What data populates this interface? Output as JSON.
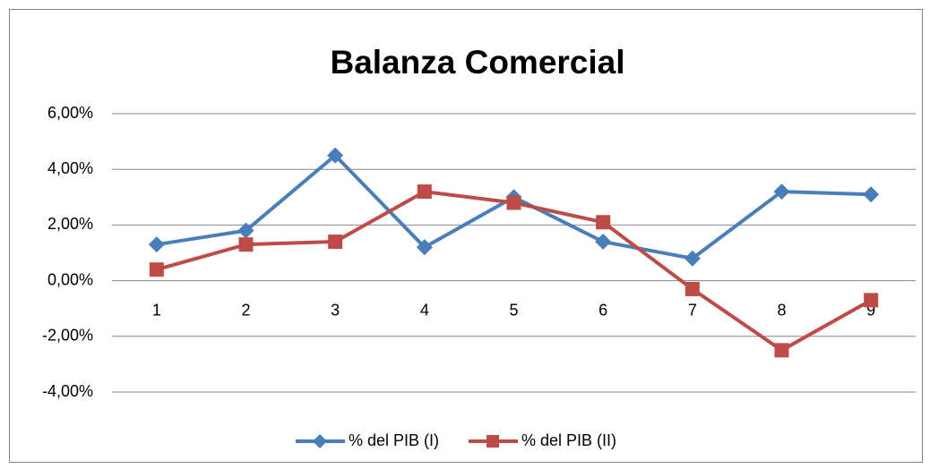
{
  "chart_data": {
    "type": "line",
    "title": "Balanza Comercial",
    "categories": [
      "1",
      "2",
      "3",
      "4",
      "5",
      "6",
      "7",
      "8",
      "9"
    ],
    "series": [
      {
        "name": "% del PIB (I)",
        "color": "#4a7ebb",
        "marker": "diamond",
        "values": [
          1.3,
          1.8,
          4.5,
          1.2,
          3.0,
          1.4,
          0.8,
          3.2,
          3.1
        ]
      },
      {
        "name": "% del PIB (II)",
        "color": "#be4b48",
        "marker": "square",
        "values": [
          0.4,
          1.3,
          1.4,
          3.2,
          2.8,
          2.1,
          -0.3,
          -2.5,
          -0.7
        ]
      }
    ],
    "ylim": [
      -4,
      6
    ],
    "yticks": [
      {
        "value": -4,
        "label": "-4,00%"
      },
      {
        "value": -2,
        "label": "-2,00%"
      },
      {
        "value": 0,
        "label": "0,00%"
      },
      {
        "value": 2,
        "label": "2,00%"
      },
      {
        "value": 4,
        "label": "4,00%"
      },
      {
        "value": 6,
        "label": "6,00%"
      }
    ],
    "grid": true,
    "legend": "bottom"
  }
}
